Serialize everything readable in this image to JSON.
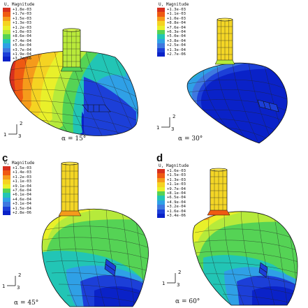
{
  "colors": {
    "scale": [
      "#d7301f",
      "#ef5a12",
      "#f59b1b",
      "#f5d322",
      "#e9f02a",
      "#b6ea3b",
      "#55d355",
      "#22c5b5",
      "#2fa0e6",
      "#3f78e0",
      "#1c3fd8",
      "#0a22c8"
    ],
    "mesh": "#222222"
  },
  "panels": [
    {
      "id": "a",
      "letter": "",
      "legend_title": "U, Magnitude",
      "legend_values": [
        "+1.8e-03",
        "+1.7e-03",
        "+1.5e-03",
        "+1.3e-03",
        "+1.2e-03",
        "+1.0e-03",
        "+8.6e-04",
        "+7.4e-04",
        "+5.6e-04",
        "+3.7e-04",
        "+1.9e-04",
        "+3.7e-06"
      ],
      "angle_label": "α = 15°",
      "triad": {
        "up": "2",
        "left": "1",
        "right": "3"
      }
    },
    {
      "id": "b",
      "letter": "",
      "legend_title": "U, Magnitude",
      "legend_values": [
        "+1.3e-03",
        "+1.1e-03",
        "+1.0e-03",
        "+8.8e-04",
        "+7.6e-04",
        "+6.3e-04",
        "+5.0e-04",
        "+3.8e-04",
        "+2.5e-04",
        "+1.3e-04",
        "+2.7e-06"
      ],
      "angle_label": "α = 30°",
      "triad": {
        "up": "2",
        "left": "1",
        "right": "3"
      }
    },
    {
      "id": "c",
      "letter": "c",
      "legend_title": "U, Magnitude",
      "legend_values": [
        "+1.5e-03",
        "+1.4e-03",
        "+1.2e-03",
        "+1.1e-03",
        "+9.1e-04",
        "+7.6e-04",
        "+6.1e-04",
        "+4.6e-04",
        "+3.1e-04",
        "+1.5e-04",
        "+2.8e-06"
      ],
      "angle_label": "α = 45°",
      "triad": {
        "up": "2",
        "left": "1",
        "right": "3"
      }
    },
    {
      "id": "d",
      "letter": "d",
      "legend_title": "U, Magnitude",
      "legend_values": [
        "+1.6e-03",
        "+1.5e-03",
        "+1.3e-03",
        "+1.1e-03",
        "+9.7e-04",
        "+8.1e-04",
        "+6.5e-04",
        "+4.9e-04",
        "+3.2e-04",
        "+1.6e-04",
        "+3.4e-06"
      ],
      "angle_label": "α = 60°",
      "triad": {
        "up": "2",
        "left": "1",
        "right": "3"
      }
    }
  ]
}
